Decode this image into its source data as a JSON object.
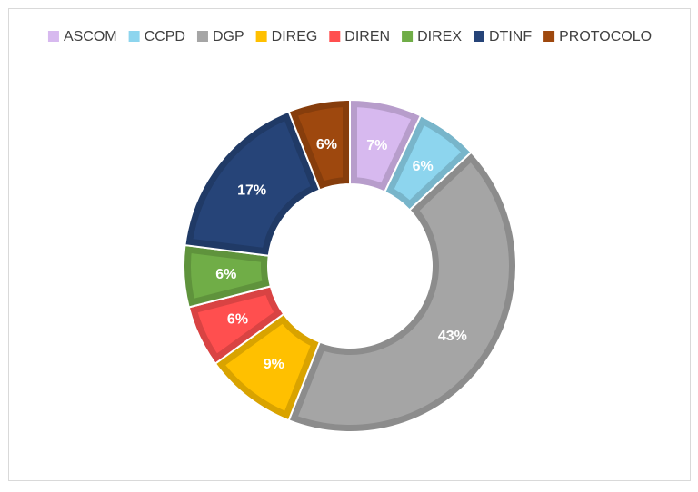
{
  "chart_data": {
    "type": "donut",
    "categories": [
      "ASCOM",
      "CCPD",
      "DGP",
      "DIREG",
      "DIREN",
      "DIREX",
      "DTINF",
      "PROTOCOLO"
    ],
    "values": [
      7,
      6,
      43,
      9,
      6,
      6,
      17,
      6
    ],
    "value_labels": [
      "7%",
      "6%",
      "43%",
      "9%",
      "6%",
      "6%",
      "17%",
      "6%"
    ],
    "colors": [
      "#d7b9ef",
      "#8dd5ee",
      "#a5a5a5",
      "#ffc000",
      "#ff4f4f",
      "#70ad47",
      "#264478",
      "#9e480e"
    ],
    "legend": "top"
  }
}
